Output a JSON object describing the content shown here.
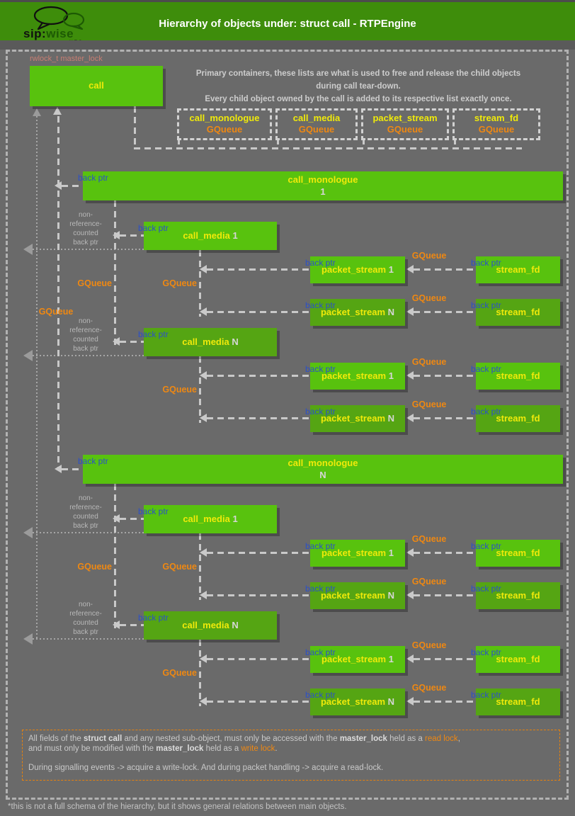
{
  "header": {
    "title": "Hierarchy of objects under: struct call - RTPEngine",
    "logo": {
      "brand_sip": "sip:",
      "brand_wise": "wise",
      "tagline": "an ALE Company"
    }
  },
  "annotations": {
    "master_lock": "rwlock_t master_lock",
    "back_ptr": "back ptr",
    "gqueue": "GQueue",
    "non_ref_lines": [
      "non-",
      "reference-",
      "counted",
      "back ptr"
    ]
  },
  "intro": {
    "line1": "Primary containers, these lists are what is used to free and release the child objects",
    "line2": "during call tear-down.",
    "line3": "Every child object owned by the call is added to its respective list exactly once."
  },
  "call_box": {
    "label": "call"
  },
  "legend_queues": [
    {
      "name": "call_monologue",
      "container": "GQueue"
    },
    {
      "name": "call_media",
      "container": "GQueue"
    },
    {
      "name": "packet_stream",
      "container": "GQueue"
    },
    {
      "name": "stream_fd",
      "container": "GQueue"
    }
  ],
  "tree": {
    "monologue_label": "call_monologue",
    "media_label": "call_media",
    "packet_stream_label": "packet_stream",
    "stream_fd_label": "stream_fd",
    "monologues": [
      {
        "index": "1",
        "medias": [
          {
            "index": "1",
            "packet_streams": [
              {
                "index": "1"
              },
              {
                "index": "N"
              }
            ]
          },
          {
            "index": "N",
            "packet_streams": [
              {
                "index": "1"
              },
              {
                "index": "N"
              }
            ]
          }
        ]
      },
      {
        "index": "N",
        "medias": [
          {
            "index": "1",
            "packet_streams": [
              {
                "index": "1"
              },
              {
                "index": "N"
              }
            ]
          },
          {
            "index": "N",
            "packet_streams": [
              {
                "index": "1"
              },
              {
                "index": "N"
              }
            ]
          }
        ]
      }
    ]
  },
  "note_box": {
    "lines": [
      [
        {
          "t": "All fields of the ",
          "s": ""
        },
        {
          "t": "struct call",
          "s": "b"
        },
        {
          "t": " and any nested sub-object, must only be accessed with the ",
          "s": ""
        },
        {
          "t": "master_lock",
          "s": "b"
        },
        {
          "t": " held as a ",
          "s": ""
        },
        {
          "t": "read lock",
          "s": "o"
        },
        {
          "t": ",",
          "s": ""
        }
      ],
      [
        {
          "t": "and must only be modified with the ",
          "s": ""
        },
        {
          "t": "master_lock",
          "s": "b"
        },
        {
          "t": " held as a ",
          "s": ""
        },
        {
          "t": "write lock",
          "s": "o"
        },
        {
          "t": ".",
          "s": ""
        }
      ],
      [],
      [
        {
          "t": "During signalling events -> acquire a write-lock. And during packet handling -> acquire a read-lock.",
          "s": ""
        }
      ]
    ]
  },
  "footer": "*this is not a full schema of the hierarchy, but it shows general relations between main objects.",
  "colors": {
    "header_green": "#3e8d0b",
    "box_green_bright": "#58c20e",
    "box_green_dark": "#55a513",
    "label_yellow": "#f0ea0a",
    "queue_orange": "#ef8812",
    "backptr_blue": "#2b50c8",
    "masterlock_salmon": "#c87e72",
    "note_border_orange": "#e8820c",
    "background_gray": "#6a6a6a"
  }
}
